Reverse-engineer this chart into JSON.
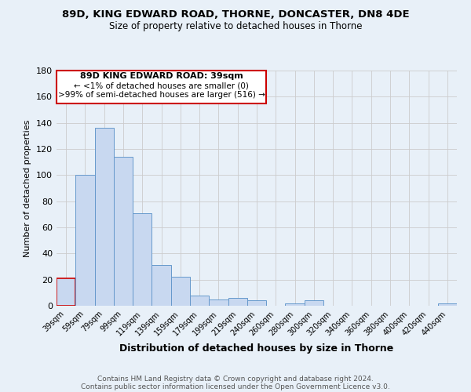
{
  "title1": "89D, KING EDWARD ROAD, THORNE, DONCASTER, DN8 4DE",
  "title2": "Size of property relative to detached houses in Thorne",
  "xlabel": "Distribution of detached houses by size in Thorne",
  "ylabel": "Number of detached properties",
  "bin_labels": [
    "39sqm",
    "59sqm",
    "79sqm",
    "99sqm",
    "119sqm",
    "139sqm",
    "159sqm",
    "179sqm",
    "199sqm",
    "219sqm",
    "240sqm",
    "260sqm",
    "280sqm",
    "300sqm",
    "320sqm",
    "340sqm",
    "360sqm",
    "380sqm",
    "400sqm",
    "420sqm",
    "440sqm"
  ],
  "bar_heights": [
    21,
    100,
    136,
    114,
    71,
    31,
    22,
    8,
    5,
    6,
    4,
    0,
    2,
    4,
    0,
    0,
    0,
    0,
    0,
    0,
    2
  ],
  "bar_color": "#c8d8f0",
  "bar_edge_color": "#6699cc",
  "highlight_bar_index": 0,
  "highlight_color": "#cc0000",
  "ylim": [
    0,
    180
  ],
  "yticks": [
    0,
    20,
    40,
    60,
    80,
    100,
    120,
    140,
    160,
    180
  ],
  "grid_color": "#cccccc",
  "bg_color": "#e8f0f8",
  "annotation_title": "89D KING EDWARD ROAD: 39sqm",
  "annotation_line1": "← <1% of detached houses are smaller (0)",
  "annotation_line2": ">99% of semi-detached houses are larger (516) →",
  "annotation_box_color": "#ffffff",
  "annotation_box_edge": "#cc0000",
  "footer1": "Contains HM Land Registry data © Crown copyright and database right 2024.",
  "footer2": "Contains public sector information licensed under the Open Government Licence v3.0."
}
